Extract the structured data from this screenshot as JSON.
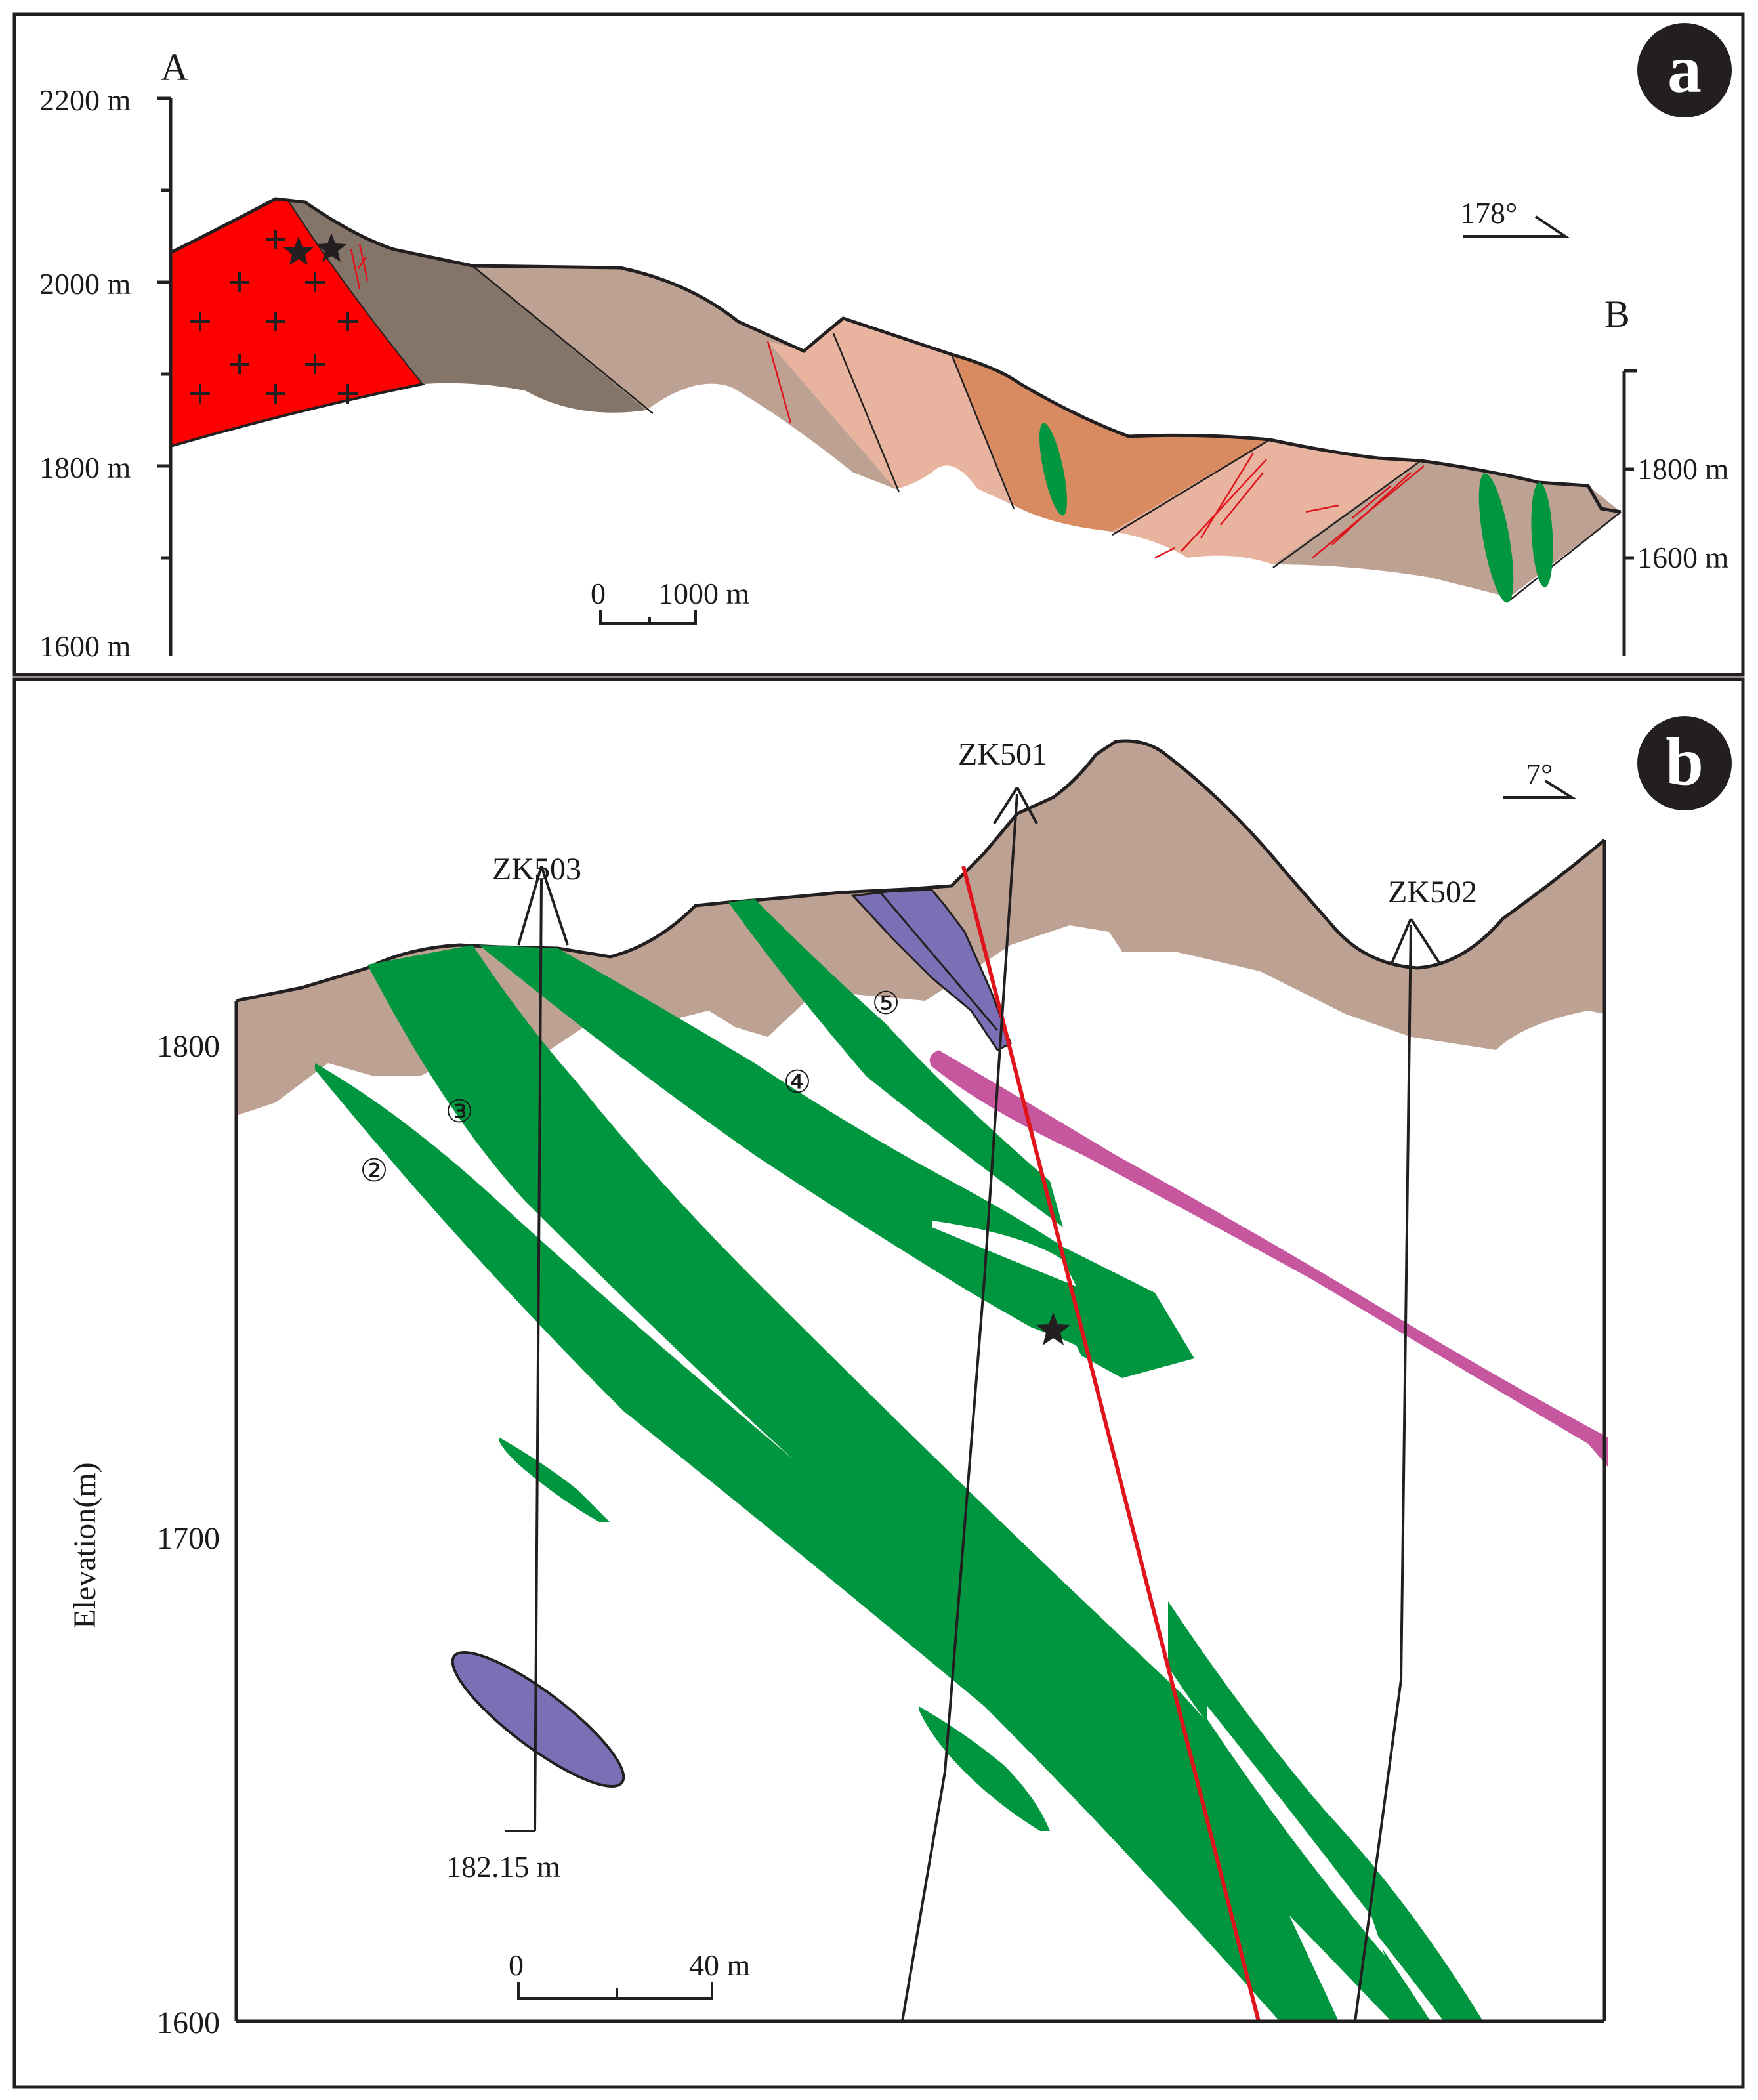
{
  "panel_a": {
    "badge": "a",
    "label_start": "A",
    "label_end": "B",
    "left_axis": [
      "2200 m",
      "2000 m",
      "1800 m",
      "1600 m"
    ],
    "right_axis": [
      "1800 m",
      "1600 m"
    ],
    "orientation": "178°",
    "scale_zero": "0",
    "scale_length": "1000 m"
  },
  "panel_b": {
    "badge": "b",
    "orientation": "7°",
    "y_axis_title": "Elevation(m)",
    "y_ticks": [
      "1800",
      "1700",
      "1600"
    ],
    "drill_holes": [
      "ZK503",
      "ZK501",
      "ZK502"
    ],
    "hole_depth": "182.15 m",
    "ore_bodies": [
      "②",
      "③",
      "④",
      "⑤"
    ],
    "scale_zero": "0",
    "scale_length": "40 m"
  },
  "colors": {
    "granite": "#ff0000",
    "dark_strata": "#857569",
    "strata": "#bda293",
    "light_strata": "#e8b49f",
    "orange_strata": "#d88a60",
    "ore_body": "#009640",
    "dyke_purple": "#7b70b5",
    "dyke_magenta": "#c6579f",
    "fault": "#e0141c",
    "outline": "#231f20"
  }
}
